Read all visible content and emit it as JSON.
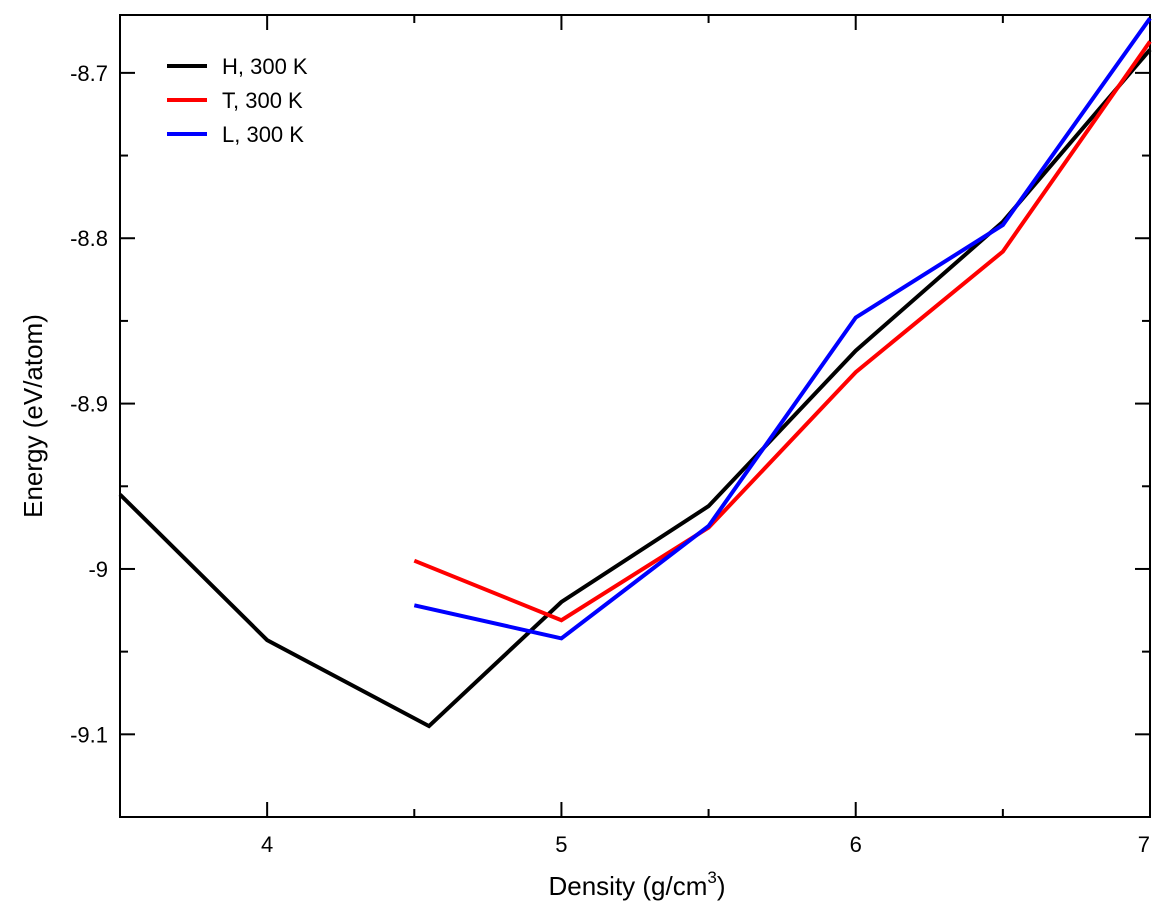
{
  "chart_data": {
    "type": "line",
    "xlabel": "Density (g/cm",
    "xlabel_sup": "3",
    "xlabel_close": ")",
    "ylabel": "Energy (eV/atom)",
    "xlim": [
      3.5,
      7
    ],
    "ylim": [
      -9.15,
      -8.665
    ],
    "xticks": [
      {
        "value": 4,
        "label": "4"
      },
      {
        "value": 5,
        "label": "5"
      },
      {
        "value": 6,
        "label": "6"
      },
      {
        "value": 7,
        "label": "7"
      }
    ],
    "yticks": [
      {
        "value": -9.1,
        "label": "-9.1"
      },
      {
        "value": -9.0,
        "label": "-9"
      },
      {
        "value": -8.9,
        "label": "-8.9"
      },
      {
        "value": -8.8,
        "label": "-8.8"
      },
      {
        "value": -8.7,
        "label": "-8.7"
      }
    ],
    "x_minor_step": 0.5,
    "y_minor_step": 0.05,
    "grid": false,
    "legend_position": "top-left",
    "series": [
      {
        "name": "H, 300 K",
        "color": "#000000",
        "points": [
          [
            3.5,
            -8.955
          ],
          [
            4.0,
            -9.043
          ],
          [
            4.55,
            -9.095
          ],
          [
            5.0,
            -9.02
          ],
          [
            5.5,
            -8.962
          ],
          [
            6.0,
            -8.868
          ],
          [
            6.5,
            -8.79
          ],
          [
            7.0,
            -8.686
          ]
        ]
      },
      {
        "name": "T, 300 K",
        "color": "#ff0000",
        "points": [
          [
            4.5,
            -8.995
          ],
          [
            5.0,
            -9.031
          ],
          [
            5.5,
            -8.975
          ],
          [
            6.0,
            -8.881
          ],
          [
            6.5,
            -8.808
          ],
          [
            7.0,
            -8.681
          ]
        ]
      },
      {
        "name": "L, 300 K",
        "color": "#0000ff",
        "points": [
          [
            4.5,
            -9.022
          ],
          [
            5.0,
            -9.042
          ],
          [
            5.5,
            -8.974
          ],
          [
            6.0,
            -8.848
          ],
          [
            6.5,
            -8.792
          ],
          [
            7.0,
            -8.667
          ]
        ]
      }
    ]
  }
}
